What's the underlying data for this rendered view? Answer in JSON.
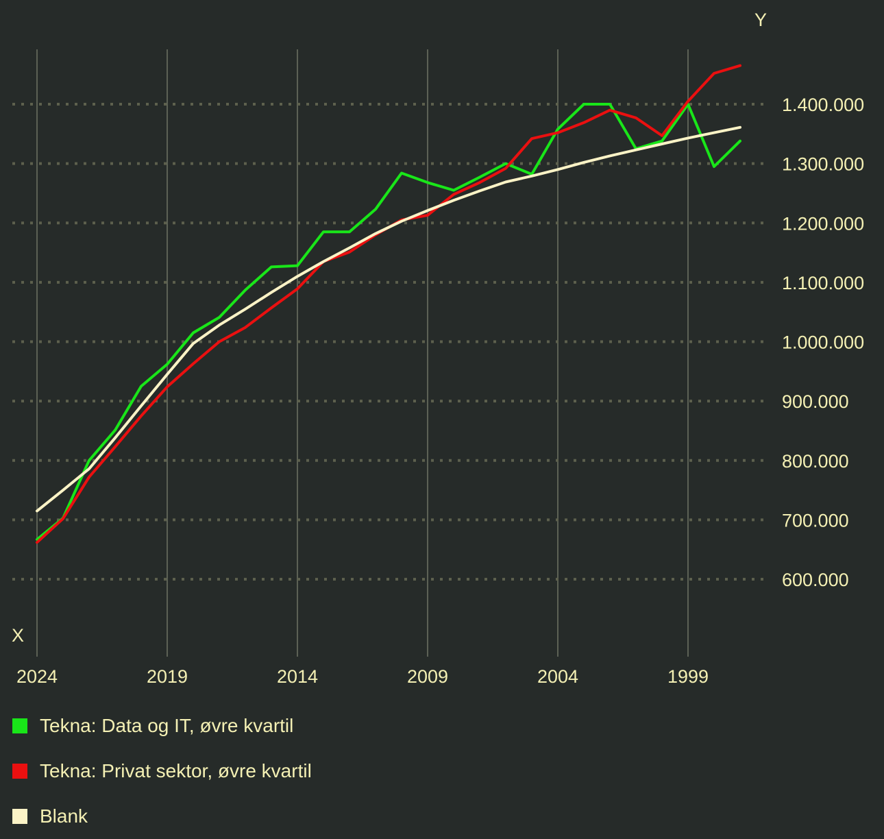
{
  "chart_data": {
    "type": "line",
    "xlabel": "X",
    "ylabel": "Y",
    "x_axis_reversed": true,
    "xlim": [
      2024,
      1997
    ],
    "ylim": [
      480000,
      1495000
    ],
    "x_ticks": [
      2024,
      2019,
      2014,
      2009,
      2004,
      1999
    ],
    "y_ticks": [
      600000,
      700000,
      800000,
      900000,
      1000000,
      1100000,
      1200000,
      1300000,
      1400000
    ],
    "y_tick_labels": [
      "600.000",
      "700.000",
      "800.000",
      "900.000",
      "1.000.000",
      "1.100.000",
      "1.200.000",
      "1.300.000",
      "1.400.000"
    ],
    "grid": {
      "x": "solid",
      "y": "dotted"
    },
    "legend_position": "bottom",
    "series": [
      {
        "name": "Tekna: Data og IT, øvre kvartil",
        "color": "#19e619",
        "x": [
          2024,
          2023,
          2022,
          2021,
          2020,
          2019,
          2018,
          2017,
          2016,
          2015,
          2014,
          2013,
          2012,
          2011,
          2010,
          2009,
          2008,
          2007,
          2006,
          2005,
          2004,
          2003,
          2002,
          2001,
          2000,
          1999,
          1998,
          1997
        ],
        "y": [
          667000,
          703000,
          800000,
          851000,
          925000,
          962000,
          1015000,
          1041000,
          1087000,
          1126000,
          1128000,
          1185000,
          1185000,
          1223000,
          1284000,
          1268000,
          1255000,
          1277000,
          1300000,
          1282000,
          1358000,
          1400000,
          1400000,
          1325000,
          1338000,
          1400000,
          1295000,
          1338000
        ]
      },
      {
        "name": "Tekna: Privat sektor, øvre kvartil",
        "color": "#ea1010",
        "x": [
          2024,
          2023,
          2022,
          2021,
          2020,
          2019,
          2018,
          2017,
          2016,
          2015,
          2014,
          2013,
          2012,
          2011,
          2010,
          2009,
          2008,
          2007,
          2006,
          2005,
          2004,
          2003,
          2002,
          2001,
          2000,
          1999,
          1998,
          1997
        ],
        "y": [
          662000,
          702000,
          772000,
          823000,
          875000,
          924000,
          963000,
          1000000,
          1024000,
          1057000,
          1089000,
          1135000,
          1151000,
          1180000,
          1205000,
          1213000,
          1248000,
          1268000,
          1292000,
          1342000,
          1352000,
          1369000,
          1390000,
          1377000,
          1347000,
          1405000,
          1452000,
          1465000
        ]
      },
      {
        "name": "Blank",
        "color": "#fbf3c6",
        "x": [
          2024,
          2023,
          2022,
          2021,
          2020,
          2019,
          2018,
          2017,
          2016,
          2015,
          2014,
          2013,
          2012,
          2011,
          2010,
          2009,
          2008,
          2007,
          2006,
          2005,
          2004,
          2003,
          2002,
          2001,
          2000,
          1999,
          1998,
          1997
        ],
        "y": [
          715000,
          750000,
          786000,
          838000,
          892000,
          945000,
          997000,
          1028000,
          1055000,
          1083000,
          1110000,
          1135000,
          1158000,
          1182000,
          1203000,
          1221000,
          1238000,
          1254000,
          1269000,
          1279000,
          1290000,
          1302000,
          1313000,
          1323000,
          1333000,
          1343000,
          1352000,
          1361000
        ]
      }
    ]
  }
}
